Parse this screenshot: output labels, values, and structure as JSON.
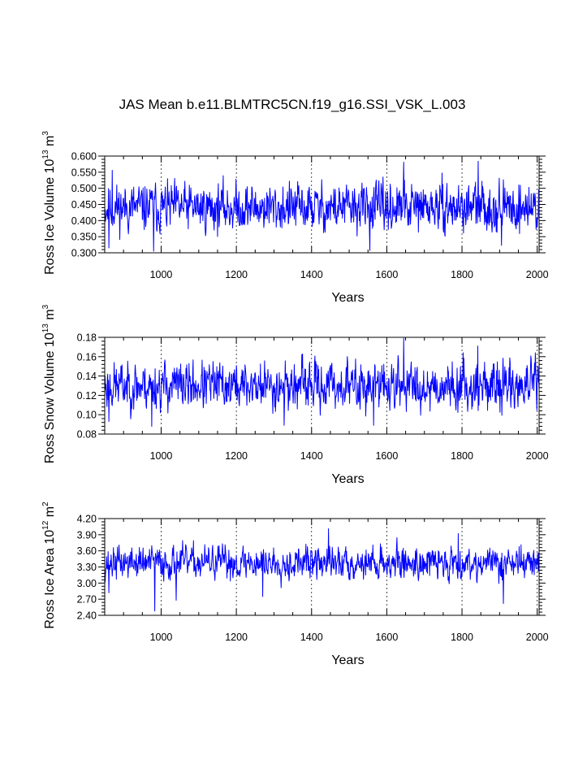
{
  "title": "JAS Mean b.e11.BLMTRC5CN.f19_g16.SSI_VSK_L.003",
  "colors": {
    "series": "#0000ff",
    "axes": "#000000",
    "grid": "#000000",
    "background": "#ffffff"
  },
  "chart_data": [
    {
      "type": "line",
      "name": "ice-volume",
      "ylabel_text": "Ross Ice Volume 10",
      "ylabel_sup": "13",
      "ylabel_unit": "m",
      "ylabel_unit_sup": "3",
      "xlabel": "Years",
      "xlim": [
        850,
        2005
      ],
      "ylim": [
        0.3,
        0.6
      ],
      "x_ticks": [
        "1000",
        "1200",
        "1400",
        "1600",
        "1800",
        "2000"
      ],
      "y_ticks": [
        "0.300",
        "0.350",
        "0.400",
        "0.450",
        "0.500",
        "0.550",
        "0.600"
      ],
      "grid": "dashed vertical at x ticks",
      "series": [
        {
          "name": "JAS mean",
          "mean": 0.44,
          "amplitude": 0.048,
          "seed": 11,
          "extremes": [
            [
              861,
              0.315
            ],
            [
              870,
              0.556
            ],
            [
              980,
              0.305
            ],
            [
              1645,
              0.581
            ],
            [
              1843,
              0.584
            ],
            [
              1555,
              0.307
            ],
            [
              1905,
              0.323
            ]
          ]
        }
      ]
    },
    {
      "type": "line",
      "name": "snow-volume",
      "ylabel_text": "Ross Snow Volume 10",
      "ylabel_sup": "13",
      "ylabel_unit": "m",
      "ylabel_unit_sup": "3",
      "xlabel": "Years",
      "xlim": [
        850,
        2005
      ],
      "ylim": [
        0.08,
        0.18
      ],
      "x_ticks": [
        "1000",
        "1200",
        "1400",
        "1600",
        "1800",
        "2000"
      ],
      "y_ticks": [
        "0.08",
        "0.10",
        "0.12",
        "0.14",
        "0.16",
        "0.18"
      ],
      "grid": "dashed vertical at x ticks",
      "series": [
        {
          "name": "JAS mean",
          "mean": 0.13,
          "amplitude": 0.016,
          "seed": 23,
          "extremes": [
            [
              861,
              0.093
            ],
            [
              975,
              0.088
            ],
            [
              1327,
              0.089
            ],
            [
              1645,
              0.179
            ],
            [
              1842,
              0.171
            ],
            [
              1995,
              0.164
            ],
            [
              1565,
              0.089
            ]
          ]
        }
      ]
    },
    {
      "type": "line",
      "name": "ice-area",
      "ylabel_text": "Ross Ice Area 10",
      "ylabel_sup": "12",
      "ylabel_unit": "m",
      "ylabel_unit_sup": "2",
      "xlabel": "Years",
      "xlim": [
        850,
        2005
      ],
      "ylim": [
        2.4,
        4.2
      ],
      "x_ticks": [
        "1000",
        "1200",
        "1400",
        "1600",
        "1800",
        "2000"
      ],
      "y_ticks": [
        "2.40",
        "2.70",
        "3.00",
        "3.30",
        "3.60",
        "3.90",
        "4.20"
      ],
      "grid": "dashed vertical at x ticks",
      "series": [
        {
          "name": "JAS mean",
          "mean": 3.38,
          "amplitude": 0.2,
          "seed": 37,
          "extremes": [
            [
              861,
              2.82
            ],
            [
              983,
              2.48
            ],
            [
              1040,
              2.68
            ],
            [
              1445,
              4.01
            ],
            [
              1910,
              2.62
            ],
            [
              1790,
              3.92
            ],
            [
              1270,
              2.75
            ]
          ]
        }
      ]
    }
  ]
}
